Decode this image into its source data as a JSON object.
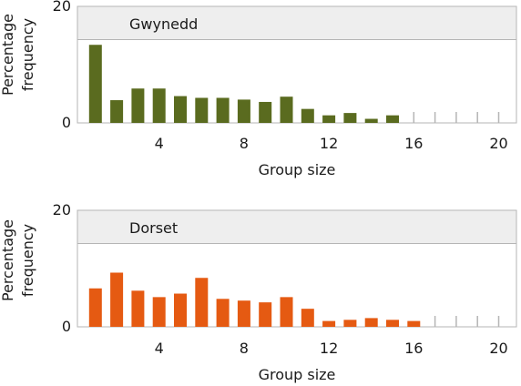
{
  "chart_data": [
    {
      "type": "bar",
      "title": "Gwynedd",
      "xlabel": "Group size",
      "ylabel": "Percentage frequency",
      "ylim": [
        0,
        20
      ],
      "yticks": [
        "0",
        "20"
      ],
      "xticks": [
        "4",
        "8",
        "12",
        "16",
        "20"
      ],
      "x": [
        1,
        2,
        3,
        4,
        5,
        6,
        7,
        8,
        9,
        10,
        11,
        12,
        13,
        14,
        15,
        16,
        17,
        18,
        19,
        20
      ],
      "values": [
        13.4,
        3.9,
        5.9,
        5.9,
        4.6,
        4.3,
        4.3,
        4.0,
        3.6,
        4.5,
        2.4,
        1.3,
        1.7,
        0.7,
        1.3,
        0,
        0,
        0,
        0,
        0
      ],
      "colors": {
        "bar": "#5a6b1f",
        "band": "#eeeeee",
        "grid": "#b5b5b5"
      }
    },
    {
      "type": "bar",
      "title": "Dorset",
      "xlabel": "Group size",
      "ylabel": "Percentage frequency",
      "ylim": [
        0,
        20
      ],
      "yticks": [
        "0",
        "20"
      ],
      "xticks": [
        "4",
        "8",
        "12",
        "16",
        "20"
      ],
      "x": [
        1,
        2,
        3,
        4,
        5,
        6,
        7,
        8,
        9,
        10,
        11,
        12,
        13,
        14,
        15,
        16,
        17,
        18,
        19,
        20
      ],
      "values": [
        6.6,
        9.3,
        6.2,
        5.1,
        5.7,
        8.4,
        4.8,
        4.5,
        4.2,
        5.1,
        3.1,
        1.0,
        1.2,
        1.5,
        1.2,
        1.0,
        0,
        0,
        0,
        0
      ],
      "colors": {
        "bar": "#e55a12",
        "band": "#eeeeee",
        "grid": "#b5b5b5"
      }
    }
  ]
}
